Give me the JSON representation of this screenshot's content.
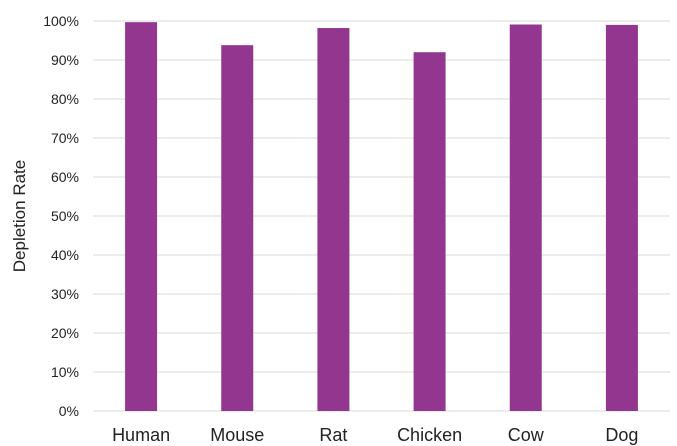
{
  "chart_data": {
    "type": "bar",
    "title": "",
    "xlabel": "",
    "ylabel": "Depletion Rate",
    "categories": [
      "Human",
      "Mouse",
      "Rat",
      "Chicken",
      "Cow",
      "Dog"
    ],
    "values": [
      0.997,
      0.938,
      0.982,
      0.92,
      0.991,
      0.99
    ],
    "ylim": [
      0,
      1
    ],
    "yticks": [
      0,
      0.1,
      0.2,
      0.3,
      0.4,
      0.5,
      0.6,
      0.7,
      0.8,
      0.9,
      1.0
    ],
    "ytick_labels": [
      "0%",
      "10%",
      "20%",
      "30%",
      "40%",
      "50%",
      "60%",
      "70%",
      "80%",
      "90%",
      "100%"
    ],
    "grid": true,
    "legend": "none",
    "bar_color": "#93368f",
    "grid_color": "#d9d9d9"
  }
}
